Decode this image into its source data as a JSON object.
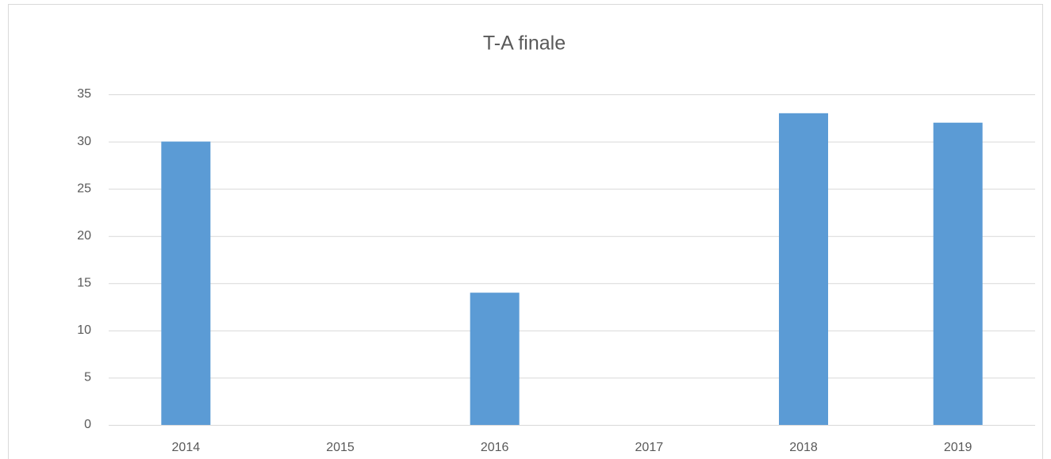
{
  "chart_data": {
    "type": "bar",
    "title": "T-A finale",
    "categories": [
      "2014",
      "2015",
      "2016",
      "2017",
      "2018",
      "2019"
    ],
    "values": [
      30,
      0,
      14,
      0,
      33,
      32
    ],
    "color": "#5b9bd5",
    "ylim": [
      0,
      35
    ],
    "yticks": [
      0,
      5,
      10,
      15,
      20,
      25,
      30,
      35
    ],
    "grid": true
  }
}
